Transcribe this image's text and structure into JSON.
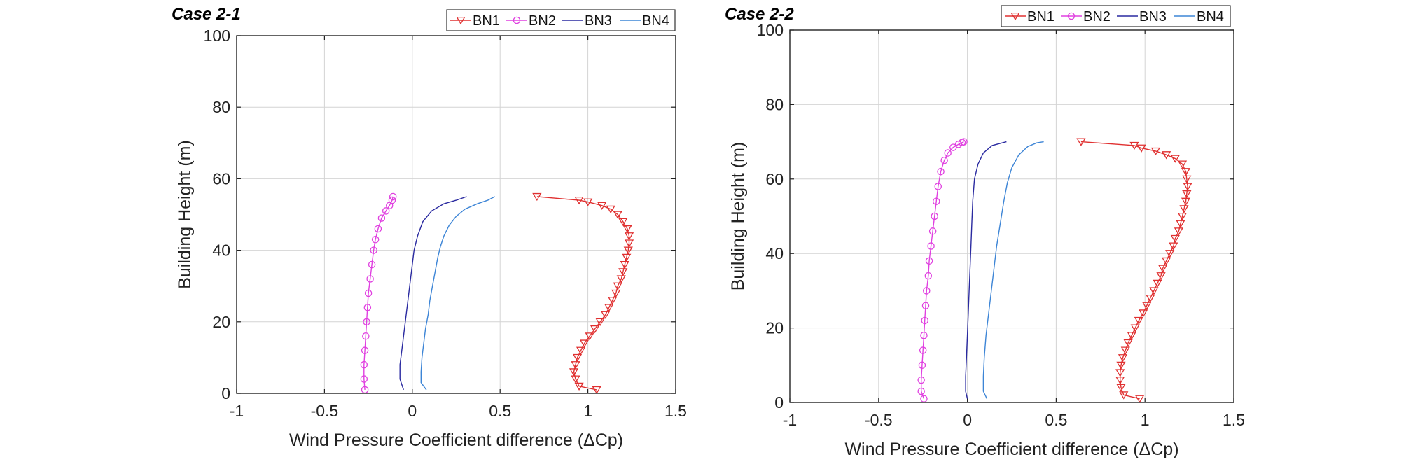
{
  "chart_data": [
    {
      "type": "line",
      "title": "Case 2-1",
      "xlabel": "Wind Pressure Coefficient difference (ΔCp)",
      "ylabel": "Building Height (m)",
      "xlim": [
        -1,
        1.5
      ],
      "ylim": [
        0,
        100
      ],
      "xticks": [
        "-1",
        "-0.5",
        "0",
        "0.5",
        "1",
        "1.5"
      ],
      "yticks": [
        "0",
        "20",
        "40",
        "60",
        "80",
        "100"
      ],
      "grid": true,
      "legend": "top-right",
      "series": [
        {
          "name": "BN1",
          "color": "#e03030",
          "marker": "triangle-down",
          "points": [
            [
              1.05,
              1
            ],
            [
              0.95,
              2
            ],
            [
              0.93,
              4
            ],
            [
              0.92,
              6
            ],
            [
              0.93,
              8
            ],
            [
              0.94,
              10
            ],
            [
              0.96,
              12
            ],
            [
              0.98,
              14
            ],
            [
              1.01,
              16
            ],
            [
              1.04,
              18
            ],
            [
              1.07,
              20
            ],
            [
              1.1,
              22
            ],
            [
              1.12,
              24
            ],
            [
              1.14,
              26
            ],
            [
              1.16,
              28
            ],
            [
              1.17,
              30
            ],
            [
              1.19,
              32
            ],
            [
              1.2,
              34
            ],
            [
              1.21,
              36
            ],
            [
              1.22,
              38
            ],
            [
              1.23,
              40
            ],
            [
              1.235,
              42
            ],
            [
              1.235,
              44
            ],
            [
              1.225,
              46
            ],
            [
              1.2,
              48
            ],
            [
              1.17,
              50
            ],
            [
              1.13,
              51.5
            ],
            [
              1.08,
              52.5
            ],
            [
              1.0,
              53.5
            ],
            [
              0.95,
              54
            ],
            [
              0.71,
              55
            ]
          ]
        },
        {
          "name": "BN2",
          "color": "#e040e0",
          "marker": "circle",
          "points": [
            [
              -0.27,
              1
            ],
            [
              -0.275,
              4
            ],
            [
              -0.275,
              8
            ],
            [
              -0.27,
              12
            ],
            [
              -0.265,
              16
            ],
            [
              -0.26,
              20
            ],
            [
              -0.255,
              24
            ],
            [
              -0.25,
              28
            ],
            [
              -0.24,
              32
            ],
            [
              -0.23,
              36
            ],
            [
              -0.22,
              40
            ],
            [
              -0.21,
              43
            ],
            [
              -0.195,
              46
            ],
            [
              -0.175,
              49
            ],
            [
              -0.15,
              51
            ],
            [
              -0.13,
              52.5
            ],
            [
              -0.115,
              54
            ],
            [
              -0.11,
              55
            ]
          ]
        },
        {
          "name": "BN3",
          "color": "#2a2aa0",
          "marker": "none",
          "points": [
            [
              -0.05,
              1
            ],
            [
              -0.07,
              4
            ],
            [
              -0.07,
              8
            ],
            [
              -0.06,
              12
            ],
            [
              -0.05,
              16
            ],
            [
              -0.04,
              20
            ],
            [
              -0.03,
              24
            ],
            [
              -0.02,
              28
            ],
            [
              -0.01,
              32
            ],
            [
              0.0,
              36
            ],
            [
              0.01,
              40
            ],
            [
              0.03,
              44
            ],
            [
              0.06,
              48
            ],
            [
              0.11,
              51
            ],
            [
              0.18,
              53
            ],
            [
              0.25,
              54
            ],
            [
              0.31,
              55
            ]
          ]
        },
        {
          "name": "BN4",
          "color": "#3d85d6",
          "marker": "none",
          "points": [
            [
              0.08,
              1
            ],
            [
              0.05,
              3
            ],
            [
              0.05,
              6
            ],
            [
              0.055,
              10
            ],
            [
              0.065,
              14
            ],
            [
              0.075,
              18
            ],
            [
              0.09,
              22
            ],
            [
              0.1,
              26
            ],
            [
              0.115,
              30
            ],
            [
              0.13,
              34
            ],
            [
              0.145,
              38
            ],
            [
              0.16,
              41
            ],
            [
              0.18,
              44
            ],
            [
              0.21,
              47
            ],
            [
              0.25,
              49.5
            ],
            [
              0.3,
              51.5
            ],
            [
              0.37,
              53
            ],
            [
              0.43,
              54
            ],
            [
              0.47,
              55
            ]
          ]
        }
      ]
    },
    {
      "type": "line",
      "title": "Case 2-2",
      "xlabel": "Wind Pressure Coefficient difference (ΔCp)",
      "ylabel": "Building Height (m)",
      "xlim": [
        -1,
        1.5
      ],
      "ylim": [
        0,
        100
      ],
      "xticks": [
        "-1",
        "-0.5",
        "0",
        "0.5",
        "1",
        "1.5"
      ],
      "yticks": [
        "0",
        "20",
        "40",
        "60",
        "80",
        "100"
      ],
      "grid": true,
      "legend": "top-right",
      "series": [
        {
          "name": "BN1",
          "color": "#e03030",
          "marker": "triangle-down",
          "points": [
            [
              0.97,
              1
            ],
            [
              0.88,
              2
            ],
            [
              0.865,
              4
            ],
            [
              0.86,
              6
            ],
            [
              0.86,
              8
            ],
            [
              0.865,
              10
            ],
            [
              0.875,
              12
            ],
            [
              0.89,
              14
            ],
            [
              0.905,
              16
            ],
            [
              0.925,
              18
            ],
            [
              0.945,
              20
            ],
            [
              0.965,
              22
            ],
            [
              0.99,
              24
            ],
            [
              1.01,
              26
            ],
            [
              1.03,
              28
            ],
            [
              1.05,
              30
            ],
            [
              1.07,
              32
            ],
            [
              1.09,
              34
            ],
            [
              1.1,
              36
            ],
            [
              1.12,
              38
            ],
            [
              1.14,
              40
            ],
            [
              1.16,
              42
            ],
            [
              1.17,
              44
            ],
            [
              1.19,
              46
            ],
            [
              1.2,
              48
            ],
            [
              1.21,
              50
            ],
            [
              1.22,
              52
            ],
            [
              1.23,
              54
            ],
            [
              1.235,
              56
            ],
            [
              1.24,
              58
            ],
            [
              1.235,
              60
            ],
            [
              1.23,
              62
            ],
            [
              1.21,
              64
            ],
            [
              1.17,
              65.5
            ],
            [
              1.12,
              66.5
            ],
            [
              1.06,
              67.5
            ],
            [
              0.98,
              68.3
            ],
            [
              0.94,
              69
            ],
            [
              0.64,
              70
            ]
          ]
        },
        {
          "name": "BN2",
          "color": "#e040e0",
          "marker": "circle",
          "points": [
            [
              -0.245,
              1
            ],
            [
              -0.26,
              3
            ],
            [
              -0.26,
              6
            ],
            [
              -0.255,
              10
            ],
            [
              -0.25,
              14
            ],
            [
              -0.245,
              18
            ],
            [
              -0.24,
              22
            ],
            [
              -0.235,
              26
            ],
            [
              -0.23,
              30
            ],
            [
              -0.22,
              34
            ],
            [
              -0.215,
              38
            ],
            [
              -0.205,
              42
            ],
            [
              -0.195,
              46
            ],
            [
              -0.185,
              50
            ],
            [
              -0.175,
              54
            ],
            [
              -0.165,
              58
            ],
            [
              -0.15,
              62
            ],
            [
              -0.13,
              65
            ],
            [
              -0.11,
              67
            ],
            [
              -0.08,
              68.5
            ],
            [
              -0.05,
              69.3
            ],
            [
              -0.03,
              69.8
            ],
            [
              -0.02,
              70
            ]
          ]
        },
        {
          "name": "BN3",
          "color": "#2a2aa0",
          "marker": "none",
          "points": [
            [
              0.0,
              1
            ],
            [
              -0.01,
              3
            ],
            [
              -0.01,
              7
            ],
            [
              -0.005,
              12
            ],
            [
              0.0,
              18
            ],
            [
              0.005,
              24
            ],
            [
              0.01,
              30
            ],
            [
              0.015,
              36
            ],
            [
              0.02,
              42
            ],
            [
              0.025,
              48
            ],
            [
              0.03,
              54
            ],
            [
              0.04,
              60
            ],
            [
              0.06,
              64
            ],
            [
              0.09,
              67
            ],
            [
              0.14,
              69
            ],
            [
              0.22,
              70
            ]
          ]
        },
        {
          "name": "BN4",
          "color": "#3d85d6",
          "marker": "none",
          "points": [
            [
              0.11,
              1
            ],
            [
              0.09,
              3
            ],
            [
              0.09,
              7
            ],
            [
              0.095,
              12
            ],
            [
              0.105,
              18
            ],
            [
              0.12,
              24
            ],
            [
              0.135,
              30
            ],
            [
              0.15,
              36
            ],
            [
              0.165,
              42
            ],
            [
              0.185,
              48
            ],
            [
              0.205,
              54
            ],
            [
              0.225,
              59
            ],
            [
              0.25,
              63
            ],
            [
              0.29,
              66.5
            ],
            [
              0.34,
              68.7
            ],
            [
              0.39,
              69.7
            ],
            [
              0.43,
              70
            ]
          ]
        }
      ]
    }
  ]
}
